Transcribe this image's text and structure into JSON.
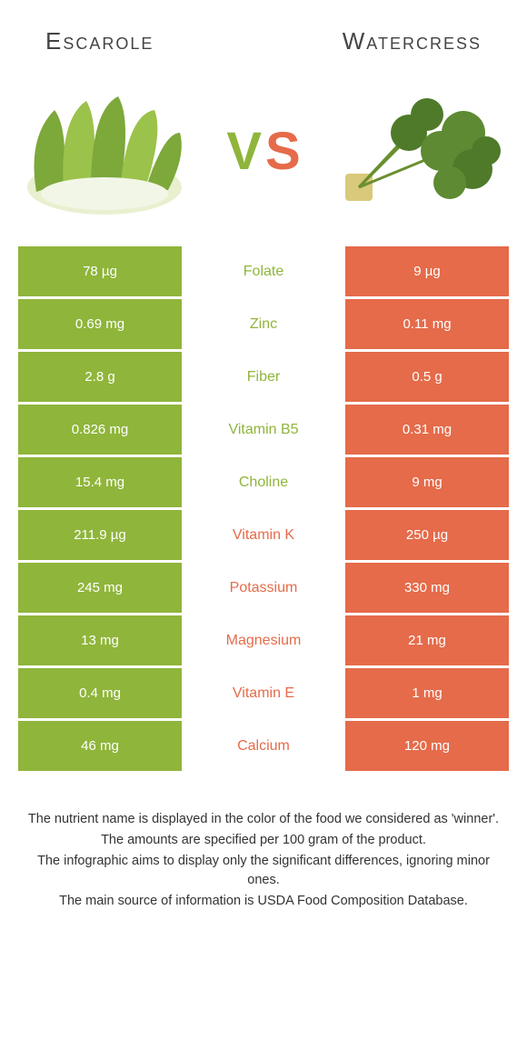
{
  "colors": {
    "left": "#8fb53b",
    "right": "#e56b4a",
    "bg": "#ffffff",
    "text": "#333333"
  },
  "title_left": "Escarole",
  "title_right": "Watercress",
  "vs_v": "V",
  "vs_s": "S",
  "rows": [
    {
      "left": "78 µg",
      "label": "Folate",
      "right": "9 µg",
      "winner": "left"
    },
    {
      "left": "0.69 mg",
      "label": "Zinc",
      "right": "0.11 mg",
      "winner": "left"
    },
    {
      "left": "2.8 g",
      "label": "Fiber",
      "right": "0.5 g",
      "winner": "left"
    },
    {
      "left": "0.826 mg",
      "label": "Vitamin B5",
      "right": "0.31 mg",
      "winner": "left"
    },
    {
      "left": "15.4 mg",
      "label": "Choline",
      "right": "9 mg",
      "winner": "left"
    },
    {
      "left": "211.9 µg",
      "label": "Vitamin K",
      "right": "250 µg",
      "winner": "right"
    },
    {
      "left": "245 mg",
      "label": "Potassium",
      "right": "330 mg",
      "winner": "right"
    },
    {
      "left": "13 mg",
      "label": "Magnesium",
      "right": "21 mg",
      "winner": "right"
    },
    {
      "left": "0.4 mg",
      "label": "Vitamin E",
      "right": "1 mg",
      "winner": "right"
    },
    {
      "left": "46 mg",
      "label": "Calcium",
      "right": "120 mg",
      "winner": "right"
    }
  ],
  "footnotes": [
    "The nutrient name is displayed in the color of the food we considered as 'winner'.",
    "The amounts are specified per 100 gram of the product.",
    "The infographic aims to display only the significant differences, ignoring minor ones.",
    "The main source of information is USDA Food Composition Database."
  ]
}
